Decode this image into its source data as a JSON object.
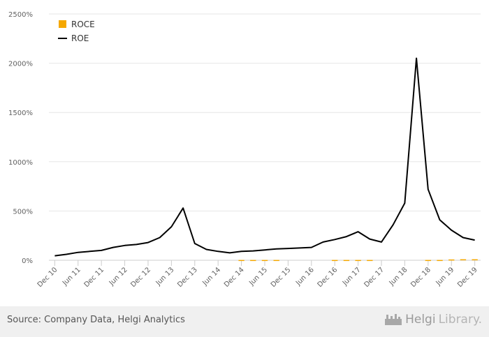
{
  "chart_data": {
    "type": "line",
    "title": "",
    "xlabel": "",
    "ylabel": "",
    "ylim": [
      0,
      2500
    ],
    "yticks": [
      0,
      500,
      1000,
      1500,
      2000,
      2500
    ],
    "ytick_labels": [
      "0%",
      "500%",
      "1000%",
      "1500%",
      "2000%",
      "2500%"
    ],
    "grid": true,
    "legend_position": "top-left",
    "x": [
      "Dec 10",
      "Mar 11",
      "Jun 11",
      "Sep 11",
      "Dec 11",
      "Mar 12",
      "Jun 12",
      "Sep 12",
      "Dec 12",
      "Mar 13",
      "Jun 13",
      "Sep 13",
      "Dec 13",
      "Mar 14",
      "Jun 14",
      "Sep 14",
      "Dec 14",
      "Mar 15",
      "Jun 15",
      "Sep 15",
      "Dec 15",
      "Mar 16",
      "Jun 16",
      "Sep 16",
      "Dec 16",
      "Mar 17",
      "Jun 17",
      "Sep 17",
      "Dec 17",
      "Mar 18",
      "Jun 18",
      "Sep 18",
      "Dec 18",
      "Mar 19",
      "Jun 19",
      "Sep 19",
      "Dec 19"
    ],
    "x_tick_labels": [
      "Dec 10",
      "Jun 11",
      "Dec 11",
      "Jun 12",
      "Dec 12",
      "Jun 13",
      "Dec 13",
      "Jun 14",
      "Dec 14",
      "Jun 15",
      "Dec 15",
      "Jun 16",
      "Dec 16",
      "Jun 17",
      "Dec 17",
      "Jun 18",
      "Dec 18",
      "Jun 19",
      "Dec 19"
    ],
    "series": [
      {
        "name": "ROCE",
        "type": "bar",
        "color": "#f5a800",
        "values": [
          null,
          null,
          null,
          null,
          null,
          null,
          null,
          null,
          null,
          null,
          null,
          null,
          null,
          null,
          null,
          null,
          3,
          3,
          3,
          3,
          null,
          null,
          null,
          null,
          3,
          3,
          3,
          3,
          null,
          null,
          null,
          null,
          3,
          3,
          8,
          10,
          10
        ]
      },
      {
        "name": "ROE",
        "type": "line",
        "color": "#000000",
        "values": [
          45,
          60,
          80,
          90,
          100,
          130,
          150,
          160,
          180,
          230,
          340,
          530,
          170,
          110,
          90,
          75,
          90,
          95,
          105,
          115,
          120,
          125,
          130,
          185,
          210,
          240,
          290,
          215,
          185,
          360,
          580,
          2050,
          720,
          410,
          305,
          230,
          205
        ]
      }
    ]
  },
  "footer": {
    "source": "Source: Company Data, Helgi Analytics",
    "logo_bold": "Helgi",
    "logo_light": "Library.",
    "logo_icon": "building-icon"
  }
}
